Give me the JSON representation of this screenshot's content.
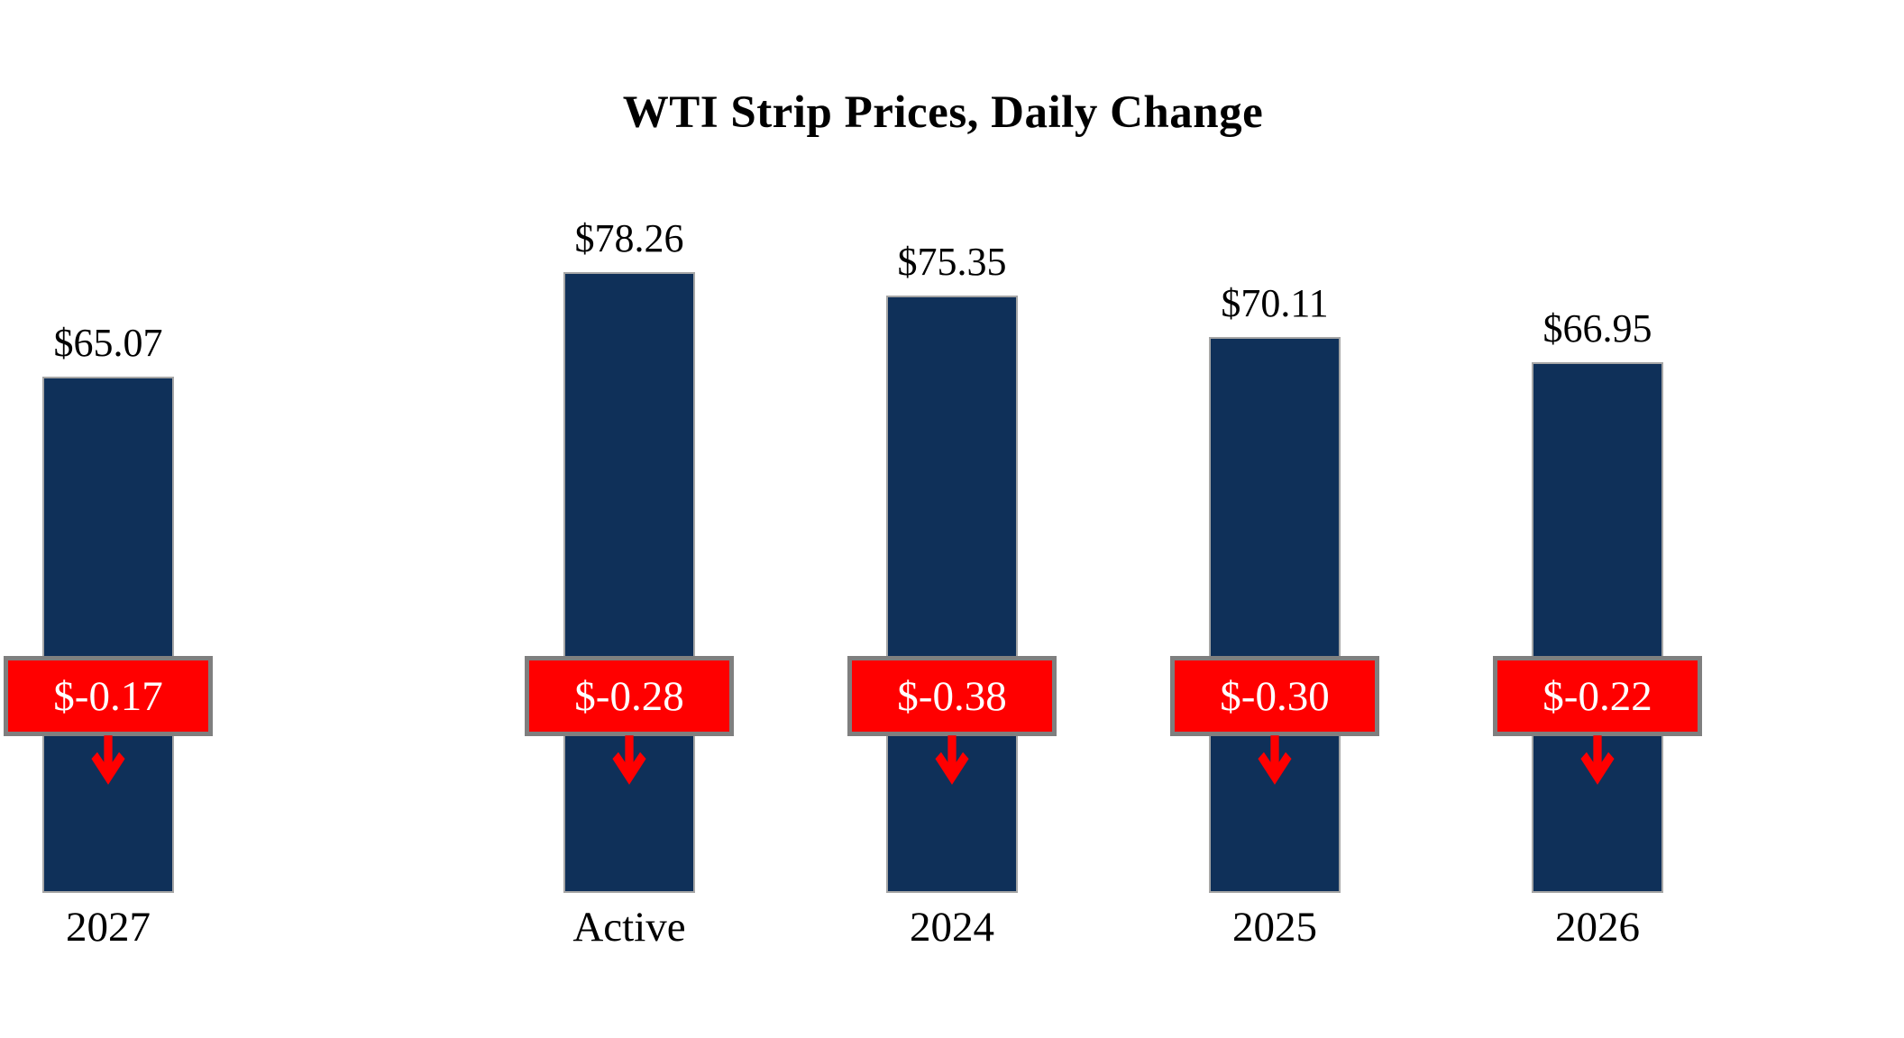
{
  "title": "WTI Strip Prices, Daily Change",
  "colors": {
    "background": "#ffffff",
    "bar_fill": "#0f3059",
    "bar_border": "#a6a6a6",
    "badge_fill": "#ff0000",
    "badge_border": "#7f7f7f",
    "badge_text": "#ffffff",
    "arrow": "#ff0000",
    "label_text": "#000000"
  },
  "chart_data": {
    "type": "bar",
    "title": "WTI Strip Prices, Daily Change",
    "categories": [
      "Active",
      "2024",
      "2025",
      "2026",
      "2027"
    ],
    "series": [
      {
        "name": "WTI strip price ($/bbl)",
        "values": [
          78.26,
          75.35,
          70.11,
          66.95,
          65.07
        ]
      },
      {
        "name": "Daily change ($/bbl)",
        "values": [
          -0.28,
          -0.38,
          -0.3,
          -0.22,
          -0.17
        ]
      }
    ],
    "value_labels": [
      "$78.26",
      "$75.35",
      "$70.11",
      "$66.95",
      "$65.07"
    ],
    "change_labels": [
      "$-0.28",
      "$-0.38",
      "$-0.30",
      "$-0.22",
      "$-0.17"
    ],
    "xlabel": "",
    "ylabel": "",
    "ylim": [
      0,
      80
    ],
    "grid": false,
    "legend_position": "none",
    "annotations": "red boxed daily-change values with down arrows overlaid on each bar"
  }
}
